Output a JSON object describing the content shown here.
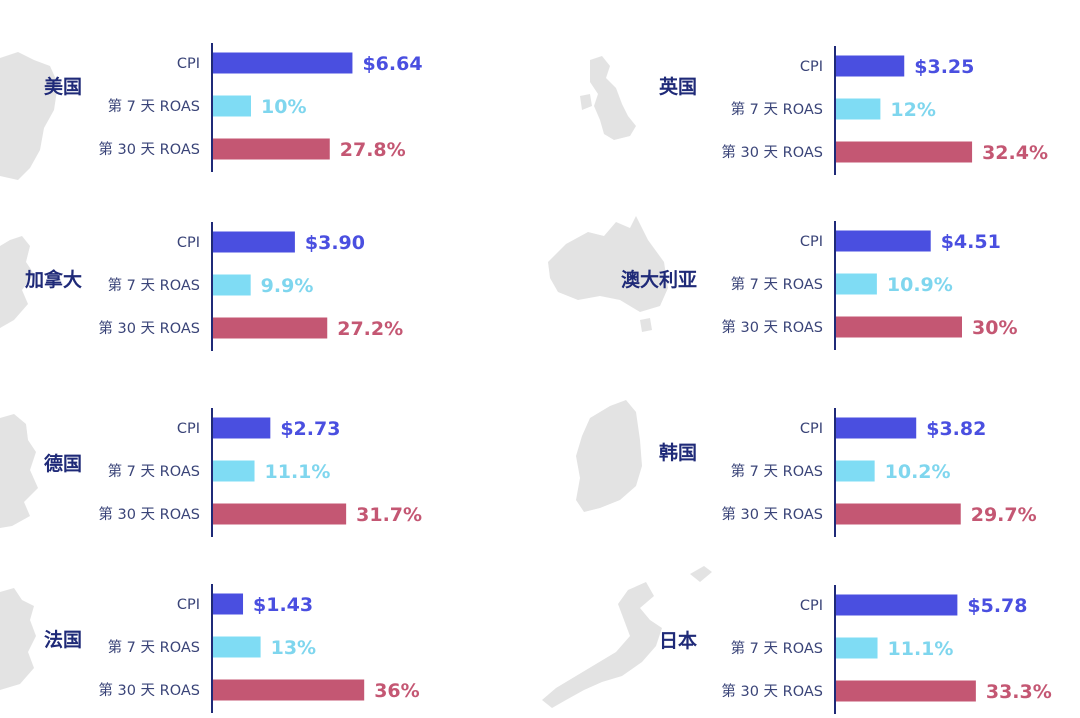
{
  "colors": {
    "cpi": "#4a4fe0",
    "roas7": "#7fdcf4",
    "roas30": "#c45773",
    "cpi_text": "#4a4fe0",
    "roas7_text": "#7fd6ee",
    "roas30_text": "#c45773",
    "axis": "#1f2a78",
    "country_text": "#1f2a78",
    "label_text": "#3a4478",
    "map": "#e3e3e3"
  },
  "metric_labels": {
    "cpi": "CPI",
    "roas7": "第 7 天 ROAS",
    "roas30": "第 30 天 ROAS"
  },
  "chart_data": [
    {
      "type": "bar",
      "country": "美国",
      "map_icon": "usa-map",
      "categories": [
        "CPI",
        "第 7 天 ROAS",
        "第 30 天 ROAS"
      ],
      "values": [
        6.64,
        10,
        27.8
      ],
      "value_labels": [
        "$6.64",
        "10%",
        "27.8%"
      ],
      "units": [
        "USD",
        "%",
        "%"
      ]
    },
    {
      "type": "bar",
      "country": "英国",
      "map_icon": "uk-map",
      "categories": [
        "CPI",
        "第 7 天 ROAS",
        "第 30 天 ROAS"
      ],
      "values": [
        3.25,
        12,
        32.4
      ],
      "value_labels": [
        "$3.25",
        "12%",
        "32.4%"
      ],
      "units": [
        "USD",
        "%",
        "%"
      ]
    },
    {
      "type": "bar",
      "country": "加拿大",
      "map_icon": "canada-map",
      "categories": [
        "CPI",
        "第 7 天 ROAS",
        "第 30 天 ROAS"
      ],
      "values": [
        3.9,
        9.9,
        27.2
      ],
      "value_labels": [
        "$3.90",
        "9.9%",
        "27.2%"
      ],
      "units": [
        "USD",
        "%",
        "%"
      ]
    },
    {
      "type": "bar",
      "country": "澳大利亚",
      "map_icon": "australia-map",
      "categories": [
        "CPI",
        "第 7 天 ROAS",
        "第 30 天 ROAS"
      ],
      "values": [
        4.51,
        10.9,
        30
      ],
      "value_labels": [
        "$4.51",
        "10.9%",
        "30%"
      ],
      "units": [
        "USD",
        "%",
        "%"
      ]
    },
    {
      "type": "bar",
      "country": "德国",
      "map_icon": "germany-map",
      "categories": [
        "CPI",
        "第 7 天 ROAS",
        "第 30 天 ROAS"
      ],
      "values": [
        2.73,
        11.1,
        31.7
      ],
      "value_labels": [
        "$2.73",
        "11.1%",
        "31.7%"
      ],
      "units": [
        "USD",
        "%",
        "%"
      ]
    },
    {
      "type": "bar",
      "country": "韩国",
      "map_icon": "korea-map",
      "categories": [
        "CPI",
        "第 7 天 ROAS",
        "第 30 天 ROAS"
      ],
      "values": [
        3.82,
        10.2,
        29.7
      ],
      "value_labels": [
        "$3.82",
        "10.2%",
        "29.7%"
      ],
      "units": [
        "USD",
        "%",
        "%"
      ]
    },
    {
      "type": "bar",
      "country": "法国",
      "map_icon": "france-map",
      "categories": [
        "CPI",
        "第 7 天 ROAS",
        "第 30 天 ROAS"
      ],
      "values": [
        1.43,
        13,
        36
      ],
      "value_labels": [
        "$1.43",
        "13%",
        "36%"
      ],
      "units": [
        "USD",
        "%",
        "%"
      ]
    },
    {
      "type": "bar",
      "country": "日本",
      "map_icon": "japan-map",
      "categories": [
        "CPI",
        "第 7 天 ROAS",
        "第 30 天 ROAS"
      ],
      "values": [
        5.78,
        11.1,
        33.3
      ],
      "value_labels": [
        "$5.78",
        "11.1%",
        "33.3%"
      ],
      "units": [
        "USD",
        "%",
        "%"
      ]
    }
  ]
}
